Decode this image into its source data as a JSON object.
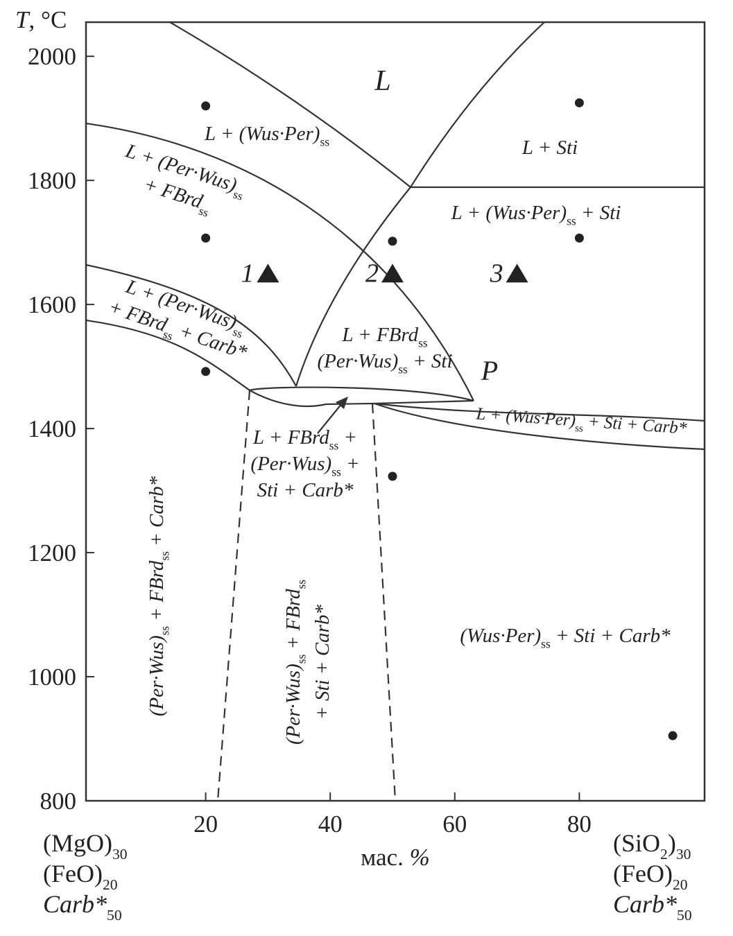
{
  "chart_data": {
    "type": "phase_diagram",
    "y_label": [
      {
        "t": "T",
        "i": true
      },
      {
        "t": ", °C"
      }
    ],
    "x_label": [
      {
        "t": "мас. "
      },
      {
        "t": "%",
        "i": true
      }
    ],
    "left_end": [
      [
        {
          "t": "(MgO)"
        },
        {
          "s": "30"
        }
      ],
      [
        {
          "t": "(FeO)"
        },
        {
          "s": "20"
        }
      ],
      [
        {
          "t": "Carb*",
          "i": true
        },
        {
          "s": "50"
        }
      ]
    ],
    "right_end": [
      [
        {
          "t": "(SiO"
        },
        {
          "s": "2"
        },
        {
          "t": ")"
        },
        {
          "s": "30"
        }
      ],
      [
        {
          "t": "(FeO)"
        },
        {
          "s": "20"
        }
      ],
      [
        {
          "t": "Carb*",
          "i": true
        },
        {
          "s": "50"
        }
      ]
    ],
    "xlim": [
      0,
      100
    ],
    "ylim": [
      800,
      2055
    ],
    "xticks": [
      20,
      40,
      60,
      80
    ],
    "yticks": [
      800,
      1000,
      1200,
      1400,
      1600,
      1800,
      2000
    ],
    "points": {
      "color": "#222",
      "x": [
        20,
        80,
        20,
        50,
        80,
        20,
        50,
        95
      ],
      "y": [
        1920,
        1925,
        1707,
        1702,
        1707,
        1492,
        1323,
        905
      ]
    },
    "experiments": {
      "color": "#222",
      "labels": [
        "1",
        "2",
        "3"
      ],
      "x": [
        30,
        50,
        70
      ],
      "y": [
        1650,
        1650,
        1650
      ]
    },
    "regions": [
      [
        [
          {
            "t": "L"
          }
        ]
      ],
      [
        [
          {
            "t": "L + (Wus·Per)"
          },
          {
            "s": "ss"
          }
        ]
      ],
      [
        [
          {
            "t": "L + Sti"
          }
        ]
      ],
      [
        [
          {
            "t": "L + (Per·Wus)"
          },
          {
            "s": "ss"
          }
        ],
        [
          {
            "t": "+ FBrd"
          },
          {
            "s": "ss"
          }
        ]
      ],
      [
        [
          {
            "t": "L + (Wus·Per)"
          },
          {
            "s": "ss"
          },
          {
            "t": " + Sti"
          }
        ]
      ],
      [
        [
          {
            "t": "L + (Per·Wus)"
          },
          {
            "s": "ss"
          }
        ],
        [
          {
            "t": "+ FBrd"
          },
          {
            "s": "ss"
          },
          {
            "t": " + Carb*"
          }
        ]
      ],
      [
        [
          {
            "t": "L + FBrd"
          },
          {
            "s": "ss"
          }
        ],
        [
          {
            "t": "(Per·Wus)"
          },
          {
            "s": "ss"
          },
          {
            "t": " + Sti"
          }
        ]
      ],
      [
        [
          {
            "t": "P"
          }
        ]
      ],
      [
        [
          {
            "t": "L + (Wus·Per)"
          },
          {
            "s": "ss"
          },
          {
            "t": " + Sti + Carb*"
          }
        ]
      ],
      [
        [
          {
            "t": "L + FBrd"
          },
          {
            "s": "ss"
          },
          {
            "t": " +"
          }
        ],
        [
          {
            "t": "(Per·Wus)"
          },
          {
            "s": "ss"
          },
          {
            "t": " +"
          }
        ],
        [
          {
            "t": "Sti + Carb*"
          }
        ]
      ],
      [
        [
          {
            "t": "(Per·Wus)"
          },
          {
            "s": "ss"
          },
          {
            "t": " + FBrd"
          },
          {
            "s": "ss"
          },
          {
            "t": " + Carb*"
          }
        ]
      ],
      [
        [
          {
            "t": "(Per·Wus)"
          },
          {
            "s": "ss"
          },
          {
            "t": " + FBrd"
          },
          {
            "s": "ss"
          }
        ],
        [
          {
            "t": "+ Sti + Carb*"
          }
        ]
      ],
      [
        [
          {
            "t": "(Wus·Per)"
          },
          {
            "s": "ss"
          },
          {
            "t": " + Sti + Carb*"
          }
        ]
      ]
    ]
  }
}
